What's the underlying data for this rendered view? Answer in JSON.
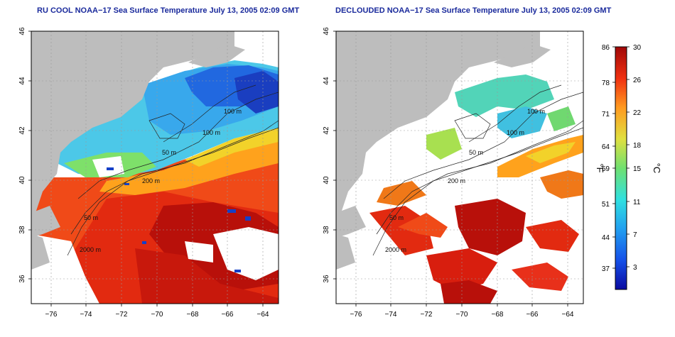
{
  "left_panel": {
    "title": "RU COOL NOAA−17 Sea Surface Temperature July 13, 2005 02:09 GMT",
    "contour_labels": [
      "100 m",
      "100 m",
      "50 m",
      "200 m",
      "50 m",
      "2000 m"
    ]
  },
  "right_panel": {
    "title": "DECLOUDED NOAA−17 Sea Surface Temperature July 13, 2005 02:09 GMT",
    "contour_labels": [
      "100 m",
      "100 m",
      "50 m",
      "200 m",
      "50 m",
      "2000 m"
    ]
  },
  "axes": {
    "x_ticks": [
      "−76",
      "−74",
      "−72",
      "−70",
      "−68",
      "−66",
      "−64"
    ],
    "y_ticks": [
      "46",
      "44",
      "42",
      "40",
      "38",
      "36"
    ],
    "lon_range": [
      -77,
      -63
    ],
    "lat_range": [
      35,
      46
    ]
  },
  "colorbar": {
    "f_ticks": [
      "86",
      "78",
      "71",
      "64",
      "59",
      "51",
      "44",
      "37"
    ],
    "c_ticks": [
      "30",
      "26",
      "22",
      "18",
      "15",
      "11",
      "7",
      "3"
    ],
    "f_unit": "°F",
    "c_unit": "°C",
    "colors": [
      "#0a0aa0",
      "#1550e8",
      "#22a0f0",
      "#30e0e0",
      "#70e070",
      "#e0e040",
      "#ff9a20",
      "#f03010",
      "#a00808"
    ]
  },
  "colors": {
    "land": "#bdbdbd",
    "cloud": "#ffffff",
    "title": "#1a2a9c"
  }
}
